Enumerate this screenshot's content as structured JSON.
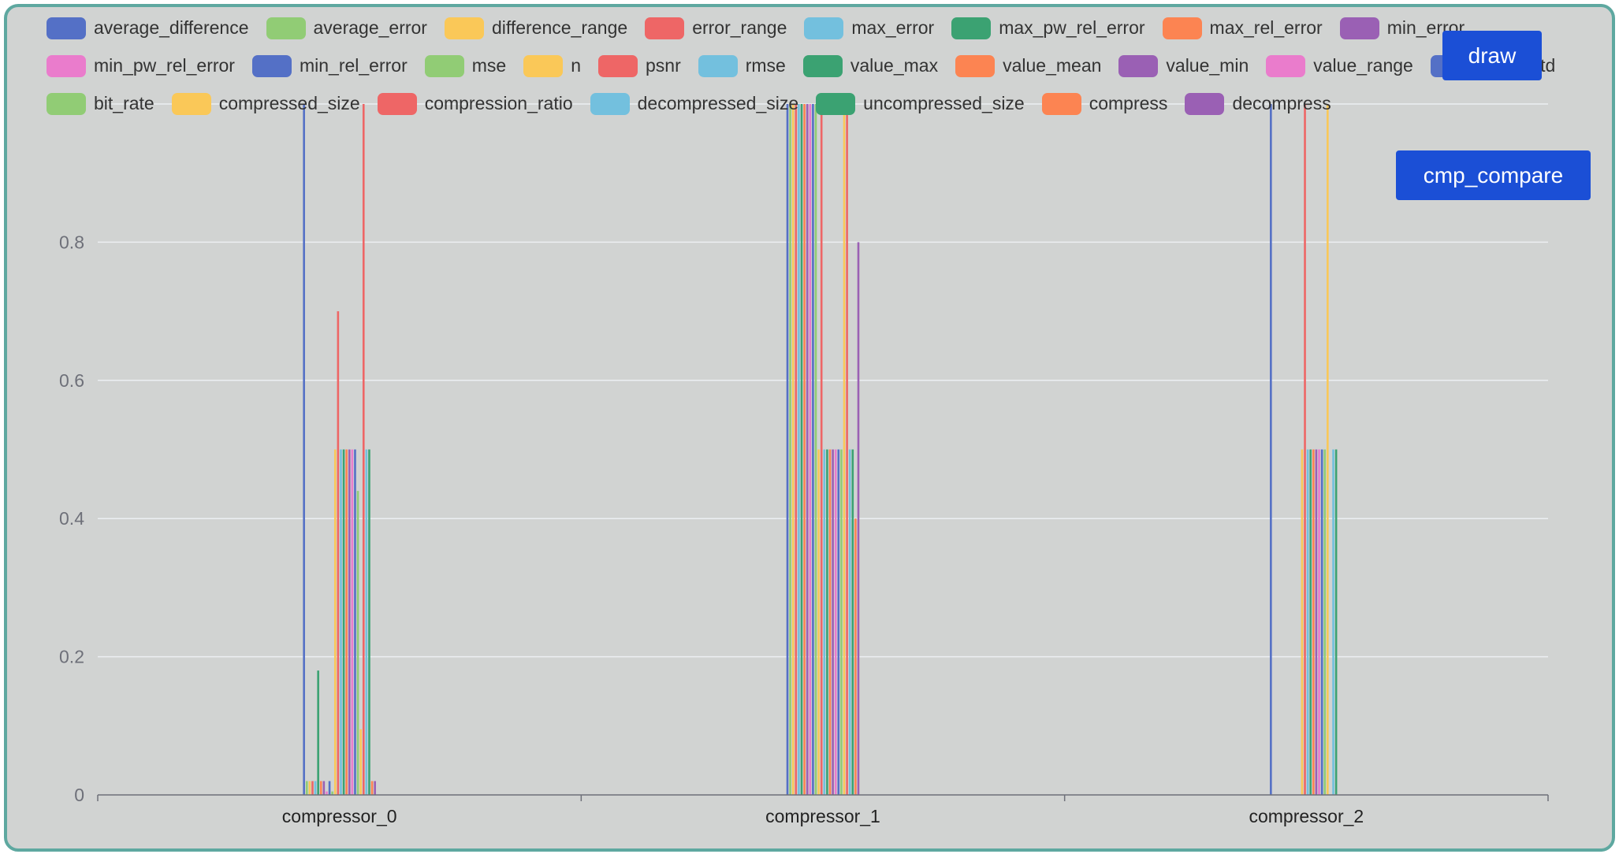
{
  "buttons": {
    "draw": "draw",
    "cmp_compare": "cmp_compare"
  },
  "legend": [
    {
      "name": "average_difference",
      "color": "#5470c6"
    },
    {
      "name": "average_error",
      "color": "#91cc75"
    },
    {
      "name": "difference_range",
      "color": "#fac858"
    },
    {
      "name": "error_range",
      "color": "#ee6666"
    },
    {
      "name": "max_error",
      "color": "#73c0de"
    },
    {
      "name": "max_pw_rel_error",
      "color": "#3ba272"
    },
    {
      "name": "max_rel_error",
      "color": "#fc8452"
    },
    {
      "name": "min_error",
      "color": "#9a60b4"
    },
    {
      "name": "min_pw_rel_error",
      "color": "#ea7ccc"
    },
    {
      "name": "min_rel_error",
      "color": "#5470c6"
    },
    {
      "name": "mse",
      "color": "#91cc75"
    },
    {
      "name": "n",
      "color": "#fac858"
    },
    {
      "name": "psnr",
      "color": "#ee6666"
    },
    {
      "name": "rmse",
      "color": "#73c0de"
    },
    {
      "name": "value_max",
      "color": "#3ba272"
    },
    {
      "name": "value_mean",
      "color": "#fc8452"
    },
    {
      "name": "value_min",
      "color": "#9a60b4"
    },
    {
      "name": "value_range",
      "color": "#ea7ccc"
    },
    {
      "name": "value_std",
      "color": "#5470c6"
    },
    {
      "name": "bit_rate",
      "color": "#91cc75"
    },
    {
      "name": "compressed_size",
      "color": "#fac858"
    },
    {
      "name": "compression_ratio",
      "color": "#ee6666"
    },
    {
      "name": "decompressed_size",
      "color": "#73c0de"
    },
    {
      "name": "uncompressed_size",
      "color": "#3ba272"
    },
    {
      "name": "compress",
      "color": "#fc8452"
    },
    {
      "name": "decompress",
      "color": "#9a60b4"
    }
  ],
  "chart_data": {
    "type": "bar",
    "categories": [
      "compressor_0",
      "compressor_1",
      "compressor_2"
    ],
    "y_ticks": [
      "0",
      "0.2",
      "0.4",
      "0.6",
      "0.8"
    ],
    "ylim": [
      0,
      1
    ],
    "grid": true,
    "legend_position": "top",
    "xlabel": "",
    "ylabel": "",
    "series": [
      {
        "name": "average_difference",
        "values": [
          1.0,
          1.0,
          1.0
        ]
      },
      {
        "name": "average_error",
        "values": [
          0.02,
          1.0,
          0.0
        ]
      },
      {
        "name": "difference_range",
        "values": [
          0.02,
          1.0,
          0.0
        ]
      },
      {
        "name": "error_range",
        "values": [
          0.02,
          1.0,
          0.0
        ]
      },
      {
        "name": "max_error",
        "values": [
          0.02,
          1.0,
          0.0
        ]
      },
      {
        "name": "max_pw_rel_error",
        "values": [
          0.18,
          1.0,
          0.0
        ]
      },
      {
        "name": "max_rel_error",
        "values": [
          0.02,
          1.0,
          0.0
        ]
      },
      {
        "name": "min_error",
        "values": [
          0.02,
          1.0,
          0.0
        ]
      },
      {
        "name": "min_pw_rel_error",
        "values": [
          0.005,
          1.0,
          0.0
        ]
      },
      {
        "name": "min_rel_error",
        "values": [
          0.02,
          1.0,
          0.0
        ]
      },
      {
        "name": "mse",
        "values": [
          0.005,
          1.0,
          0.0
        ]
      },
      {
        "name": "n",
        "values": [
          0.5,
          0.5,
          0.5
        ]
      },
      {
        "name": "psnr",
        "values": [
          0.7,
          1.0,
          1.0
        ]
      },
      {
        "name": "rmse",
        "values": [
          0.5,
          0.5,
          0.5
        ]
      },
      {
        "name": "value_max",
        "values": [
          0.5,
          0.5,
          0.5
        ]
      },
      {
        "name": "value_mean",
        "values": [
          0.5,
          0.5,
          0.5
        ]
      },
      {
        "name": "value_min",
        "values": [
          0.5,
          0.5,
          0.5
        ]
      },
      {
        "name": "value_range",
        "values": [
          0.5,
          0.5,
          0.5
        ]
      },
      {
        "name": "value_std",
        "values": [
          0.5,
          0.5,
          0.5
        ]
      },
      {
        "name": "bit_rate",
        "values": [
          0.44,
          0.5,
          0.5
        ]
      },
      {
        "name": "compressed_size",
        "values": [
          0.095,
          1.0,
          1.0
        ]
      },
      {
        "name": "compression_ratio",
        "values": [
          1.0,
          1.0,
          0.0
        ]
      },
      {
        "name": "decompressed_size",
        "values": [
          0.5,
          0.5,
          0.5
        ]
      },
      {
        "name": "uncompressed_size",
        "values": [
          0.5,
          0.5,
          0.5
        ]
      },
      {
        "name": "compress",
        "values": [
          0.02,
          0.4,
          0.0
        ]
      },
      {
        "name": "decompress",
        "values": [
          0.02,
          0.8,
          0.0
        ]
      }
    ]
  }
}
